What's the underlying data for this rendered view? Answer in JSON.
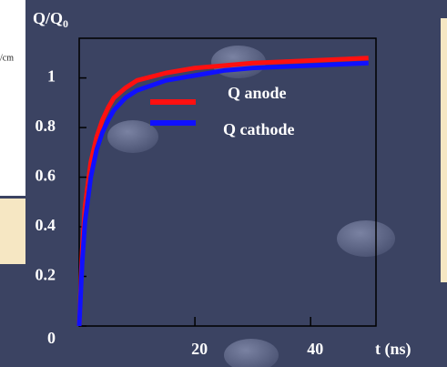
{
  "fragment_text": "/cm",
  "chart_data": {
    "type": "line",
    "ylabel": "Q/Q",
    "ylabel_sub": "0",
    "xlabel": "t (ns)",
    "x": [
      0,
      0.5,
      1,
      2,
      3,
      4,
      5,
      6,
      8,
      10,
      15,
      20,
      25,
      30,
      40,
      50
    ],
    "series": [
      {
        "name": "Q anode",
        "color": "#ff1010",
        "values": [
          0,
          0.3,
          0.48,
          0.66,
          0.76,
          0.83,
          0.88,
          0.92,
          0.96,
          0.99,
          1.02,
          1.04,
          1.05,
          1.06,
          1.07,
          1.08
        ]
      },
      {
        "name": "Q cathode",
        "color": "#1010ff",
        "values": [
          0,
          0.25,
          0.42,
          0.6,
          0.71,
          0.78,
          0.83,
          0.87,
          0.92,
          0.95,
          0.99,
          1.01,
          1.03,
          1.04,
          1.05,
          1.06
        ]
      }
    ],
    "xlim": [
      0,
      51.3
    ],
    "ylim": [
      0,
      1.16
    ],
    "xticks": [
      0,
      20,
      40
    ],
    "yticks": [
      0,
      0.2,
      0.4,
      0.6,
      0.8,
      1
    ]
  }
}
